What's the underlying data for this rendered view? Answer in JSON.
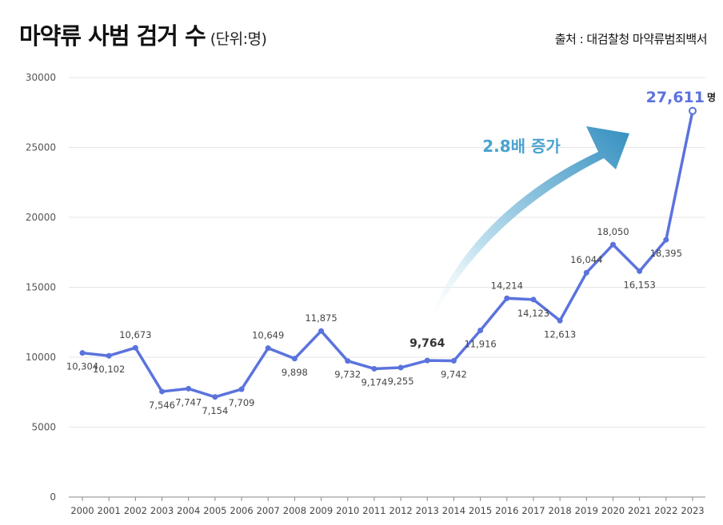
{
  "title": "마약류 사범 검거 수",
  "unit": "(단위:명)",
  "source": "출처 : 대검찰청 마약류범죄백서",
  "colors": {
    "line": "#5b73dd",
    "grid": "#e6e6e6",
    "label": "#444444",
    "arrow": "#4a9fc7",
    "growth_text": "#4aa3cf",
    "highlight": "#5b73dd"
  },
  "chart_data": {
    "type": "line",
    "title": "마약류 사범 검거 수",
    "xlabel": "",
    "ylabel": "",
    "ylim": [
      0,
      30000
    ],
    "yticks": [
      "0",
      "5000",
      "10000",
      "15000",
      "20000",
      "25000",
      "30000"
    ],
    "categories": [
      "2000",
      "2001",
      "2002",
      "2003",
      "2004",
      "2005",
      "2006",
      "2007",
      "2008",
      "2009",
      "2010",
      "2011",
      "2012",
      "2013",
      "2014",
      "2015",
      "2016",
      "2017",
      "2018",
      "2019",
      "2020",
      "2021",
      "2022",
      "2023"
    ],
    "values": [
      10304,
      10102,
      10673,
      7546,
      7747,
      7154,
      7709,
      10649,
      9898,
      11875,
      9732,
      9174,
      9255,
      9764,
      9742,
      11916,
      14214,
      14123,
      12613,
      16044,
      18050,
      16153,
      18395,
      27611
    ],
    "labels": [
      "10,304",
      "10,102",
      "10,673",
      "7,546",
      "7,747",
      "7,154",
      "7,709",
      "10,649",
      "9,898",
      "11,875",
      "9,732",
      "9,174",
      "9,255",
      "9,764",
      "9,742",
      "11,916",
      "14,214",
      "14,123",
      "12,613",
      "16,044",
      "18,050",
      "16,153",
      "18,395",
      "27,611"
    ],
    "last_label_suffix": "명",
    "annotation": "2.8배 증가",
    "grid": true,
    "legend": "none"
  }
}
